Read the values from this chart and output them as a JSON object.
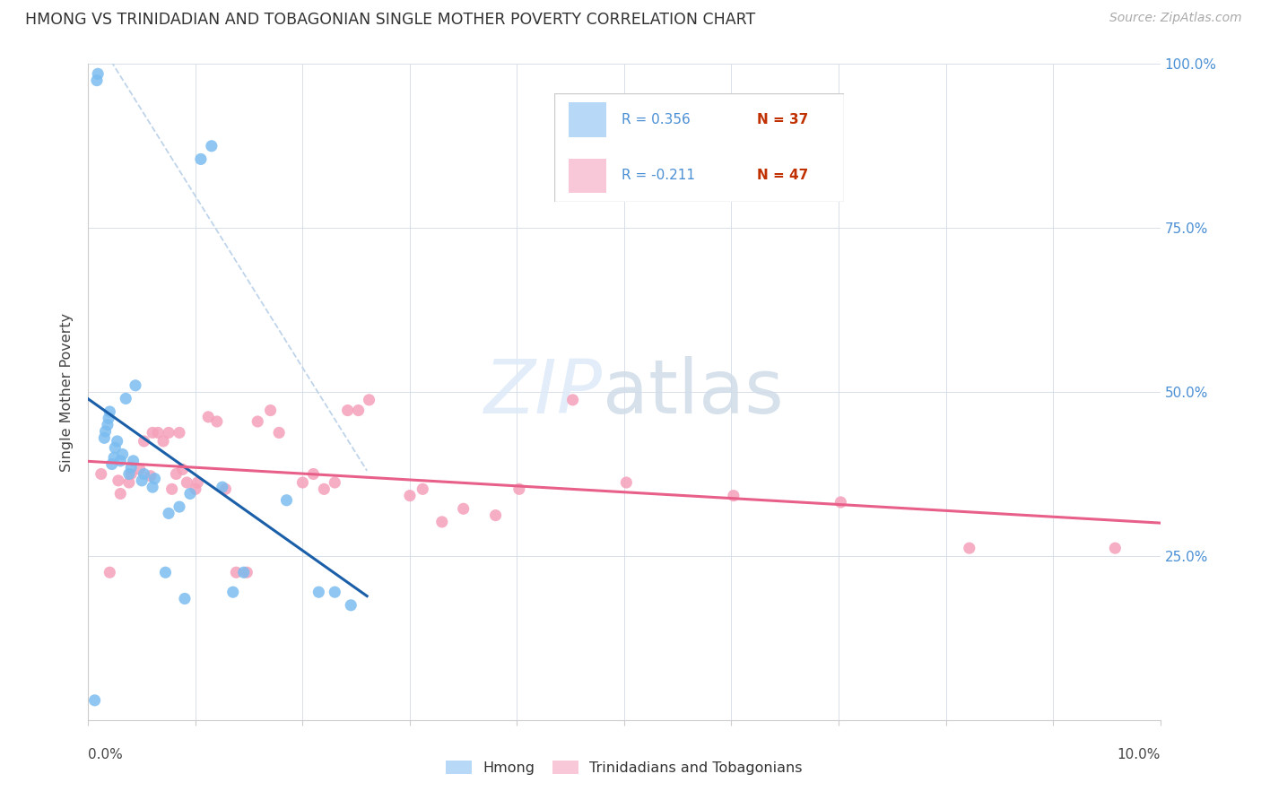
{
  "title": "HMONG VS TRINIDADIAN AND TOBAGONIAN SINGLE MOTHER POVERTY CORRELATION CHART",
  "source": "Source: ZipAtlas.com",
  "ylabel": "Single Mother Poverty",
  "xlim": [
    0.0,
    0.1
  ],
  "ylim": [
    0.0,
    1.0
  ],
  "yticks": [
    0.0,
    0.25,
    0.5,
    0.75,
    1.0
  ],
  "ytick_labels_right": [
    "",
    "25.0%",
    "50.0%",
    "75.0%",
    "100.0%"
  ],
  "hmong_color": "#7bbcf0",
  "hmong_line_color": "#1a5fa8",
  "trin_color": "#f5a0ba",
  "trin_line_color": "#e8608a",
  "trin_legend_color": "#f8c8d8",
  "hmong_legend_color": "#b8d8f8",
  "R_color": "#4a8fd4",
  "N_color": "#c03000",
  "dash_color": "#b8d0e8",
  "hmong_R": "R = 0.356",
  "hmong_N": "N = 37",
  "trin_R": "R = -0.211",
  "trin_N": "N = 47",
  "hmong_label": "Hmong",
  "trin_label": "Trinidadians and Tobagonians",
  "hmong_x": [
    0.0006,
    0.0008,
    0.0009,
    0.0015,
    0.0016,
    0.0018,
    0.0019,
    0.002,
    0.0022,
    0.0024,
    0.0025,
    0.0027,
    0.003,
    0.0032,
    0.0035,
    0.0038,
    0.004,
    0.0042,
    0.0044,
    0.005,
    0.0052,
    0.006,
    0.0062,
    0.0072,
    0.0075,
    0.0085,
    0.009,
    0.0095,
    0.0105,
    0.0115,
    0.0125,
    0.0135,
    0.0145,
    0.0185,
    0.0215,
    0.023,
    0.0245
  ],
  "hmong_y": [
    0.03,
    0.975,
    0.985,
    0.43,
    0.44,
    0.45,
    0.46,
    0.47,
    0.39,
    0.4,
    0.415,
    0.425,
    0.395,
    0.405,
    0.49,
    0.375,
    0.385,
    0.395,
    0.51,
    0.365,
    0.375,
    0.355,
    0.368,
    0.225,
    0.315,
    0.325,
    0.185,
    0.345,
    0.855,
    0.875,
    0.355,
    0.195,
    0.225,
    0.335,
    0.195,
    0.195,
    0.175
  ],
  "trin_x": [
    0.0012,
    0.002,
    0.0028,
    0.003,
    0.0038,
    0.004,
    0.0048,
    0.0052,
    0.0058,
    0.006,
    0.0065,
    0.007,
    0.0075,
    0.0078,
    0.0082,
    0.0085,
    0.0088,
    0.0092,
    0.01,
    0.0102,
    0.0112,
    0.012,
    0.0128,
    0.0138,
    0.0148,
    0.0158,
    0.017,
    0.0178,
    0.02,
    0.021,
    0.022,
    0.023,
    0.0242,
    0.0252,
    0.0262,
    0.03,
    0.0312,
    0.033,
    0.035,
    0.038,
    0.0402,
    0.0452,
    0.0502,
    0.0602,
    0.0702,
    0.0822,
    0.0958
  ],
  "trin_y": [
    0.375,
    0.225,
    0.365,
    0.345,
    0.362,
    0.375,
    0.382,
    0.425,
    0.372,
    0.438,
    0.438,
    0.425,
    0.438,
    0.352,
    0.375,
    0.438,
    0.382,
    0.362,
    0.352,
    0.362,
    0.462,
    0.455,
    0.352,
    0.225,
    0.225,
    0.455,
    0.472,
    0.438,
    0.362,
    0.375,
    0.352,
    0.362,
    0.472,
    0.472,
    0.488,
    0.342,
    0.352,
    0.302,
    0.322,
    0.312,
    0.352,
    0.488,
    0.362,
    0.342,
    0.332,
    0.262,
    0.262
  ]
}
